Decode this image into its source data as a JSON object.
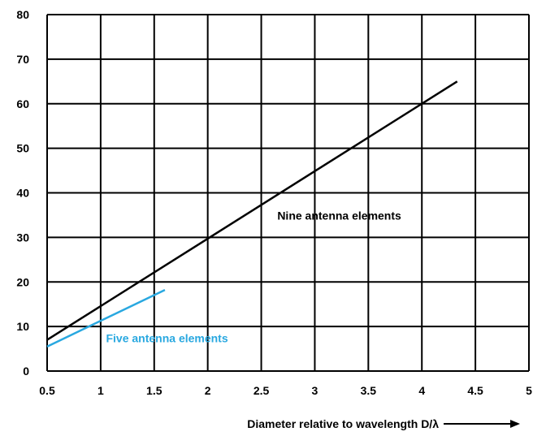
{
  "chart_data": {
    "type": "line",
    "title": "",
    "xlabel": "Diameter relative to wavelength D/λ",
    "ylabel": "",
    "xlim": [
      0.5,
      5
    ],
    "ylim": [
      0,
      80
    ],
    "xticks": [
      0.5,
      1,
      1.5,
      2,
      2.5,
      3,
      3.5,
      4,
      4.5,
      5
    ],
    "xtick_labels": [
      "0.5",
      "1",
      "1.5",
      "2",
      "2.5",
      "3",
      "3.5",
      "4",
      "4.5",
      "5"
    ],
    "yticks": [
      0,
      10,
      20,
      30,
      40,
      50,
      60,
      70,
      80
    ],
    "ytick_labels": [
      "0",
      "10",
      "20",
      "30",
      "40",
      "50",
      "60",
      "70",
      "80"
    ],
    "grid": true,
    "series": [
      {
        "name": "Nine antenna elements",
        "color": "#000000",
        "x": [
          0.5,
          4.33
        ],
        "y": [
          7,
          65
        ],
        "label_at": [
          2.65,
          34
        ]
      },
      {
        "name": "Five antenna elements",
        "color": "#29a8e0",
        "x": [
          0.5,
          1.6
        ],
        "y": [
          5.5,
          18.2
        ],
        "label_at": [
          1.05,
          6.5
        ]
      }
    ],
    "annotations": [
      "arrow-right-after-xlabel"
    ]
  }
}
